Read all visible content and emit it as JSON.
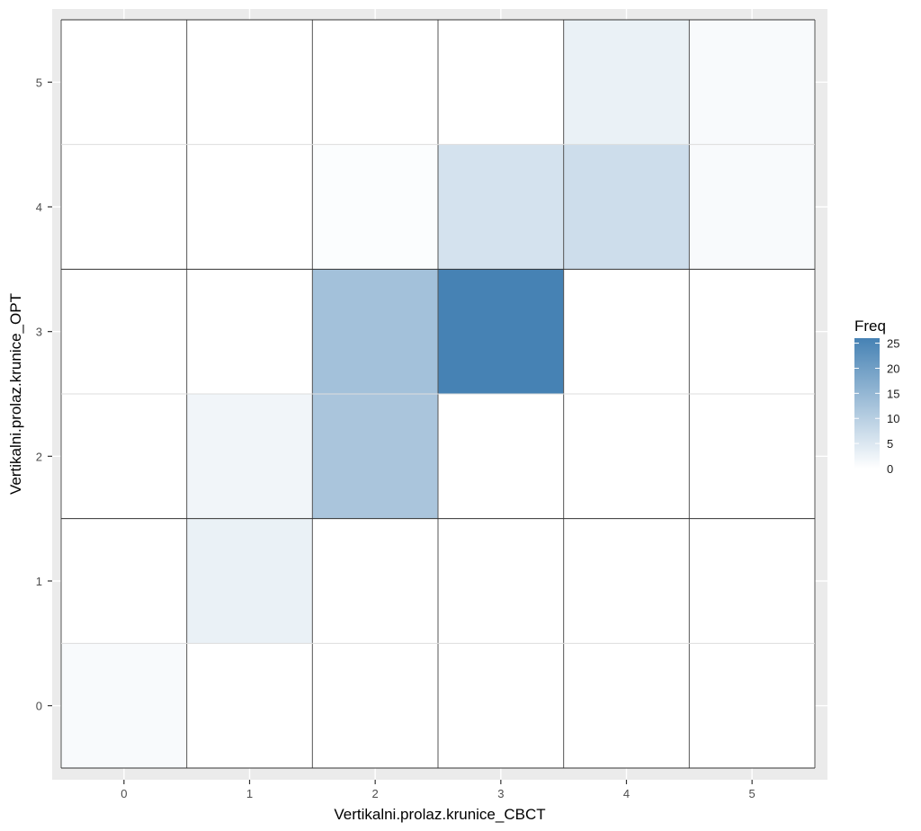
{
  "chart_data": {
    "type": "heatmap",
    "title": "",
    "xlabel": "Vertikalni.prolaz.krunice_CBCT",
    "ylabel": "Vertikalni.prolaz.krunice_OPT",
    "x_categories": [
      "0",
      "1",
      "2",
      "3",
      "4",
      "5"
    ],
    "y_categories": [
      "0",
      "1",
      "2",
      "3",
      "4",
      "5"
    ],
    "cells": [
      {
        "x": "0",
        "y": "0",
        "freq": 1
      },
      {
        "x": "1",
        "y": "1",
        "freq": 3
      },
      {
        "x": "1",
        "y": "2",
        "freq": 2
      },
      {
        "x": "2",
        "y": "2",
        "freq": 12
      },
      {
        "x": "2",
        "y": "3",
        "freq": 13
      },
      {
        "x": "2",
        "y": "4",
        "freq": 0.5
      },
      {
        "x": "3",
        "y": "3",
        "freq": 26
      },
      {
        "x": "3",
        "y": "4",
        "freq": 6
      },
      {
        "x": "4",
        "y": "4",
        "freq": 7
      },
      {
        "x": "4",
        "y": "5",
        "freq": 3
      },
      {
        "x": "5",
        "y": "4",
        "freq": 1
      },
      {
        "x": "5",
        "y": "5",
        "freq": 1
      }
    ],
    "legend": {
      "title": "Freq",
      "ticks": [
        0,
        5,
        10,
        15,
        20,
        25
      ],
      "min": 0,
      "max": 26,
      "low_color": "#ffffff",
      "high_color": "#4682b4",
      "placement": "right"
    },
    "grid": true,
    "panel_background": "#ebebeb"
  }
}
